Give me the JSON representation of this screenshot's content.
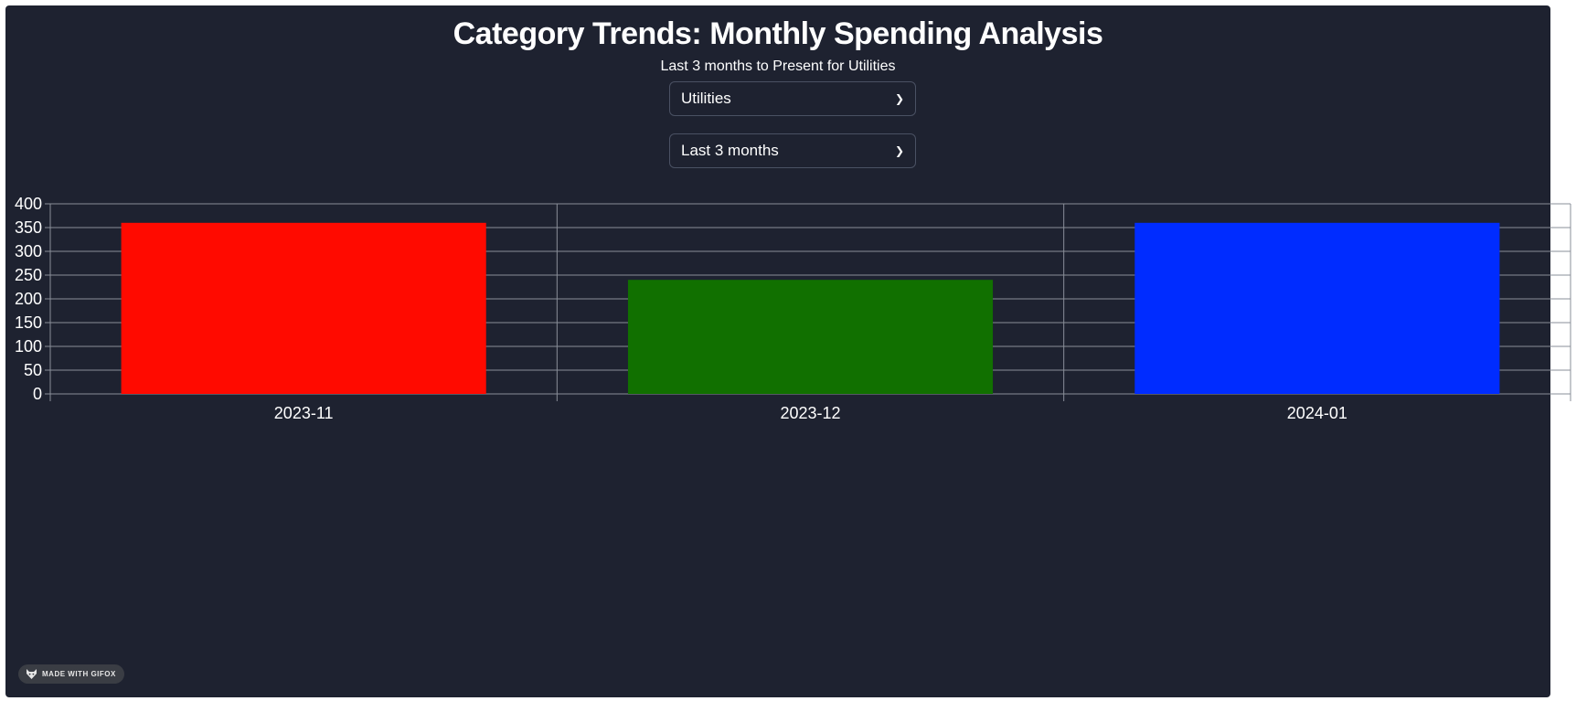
{
  "header": {
    "title": "Category Trends: Monthly Spending Analysis",
    "subtitle": "Last 3 months to Present for Utilities"
  },
  "filters": {
    "category": {
      "selected": "Utilities"
    },
    "period": {
      "selected": "Last 3 months"
    }
  },
  "colors": {
    "background": "#1e2230",
    "grid": "#8a8f99",
    "text": "#ffffff"
  },
  "chart_data": {
    "type": "bar",
    "categories": [
      "2023-11",
      "2023-12",
      "2024-01"
    ],
    "values": [
      360,
      240,
      360
    ],
    "bar_colors": [
      "#ff0a00",
      "#117000",
      "#002cff"
    ],
    "title": "",
    "xlabel": "",
    "ylabel": "",
    "ylim": [
      0,
      400
    ],
    "yticks": [
      0,
      50,
      100,
      150,
      200,
      250,
      300,
      350,
      400
    ],
    "grid": true,
    "legend": "none"
  },
  "badge": {
    "label": "MADE WITH GIFOX",
    "icon": "fox-icon"
  }
}
